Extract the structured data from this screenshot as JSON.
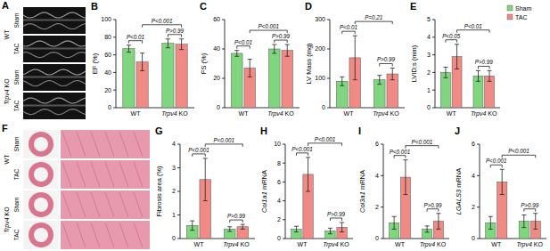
{
  "panel_a": {
    "label": "A",
    "groups": [
      {
        "genotype": "WT",
        "conditions": [
          "Sham",
          "TAC"
        ]
      },
      {
        "genotype": "Trpv4 KO",
        "conditions": [
          "Sham",
          "TAC"
        ]
      }
    ]
  },
  "panel_f": {
    "label": "F",
    "groups": [
      {
        "genotype": "WT",
        "conditions": [
          "Sham",
          "TAC"
        ]
      },
      {
        "genotype": "Trpv4 KO",
        "conditions": [
          "Sham",
          "TAC"
        ]
      }
    ]
  },
  "chart_data": [
    {
      "type": "bar",
      "title": "B",
      "y_label": "EF (%)",
      "categories": [
        "WT",
        "Trpv4 KO"
      ],
      "series": [
        {
          "name": "Sham",
          "color": "#7fd67f",
          "values": [
            67,
            73
          ],
          "errors": [
            4,
            5
          ]
        },
        {
          "name": "TAC",
          "color": "#f08a84",
          "values": [
            52,
            72
          ],
          "errors": [
            10,
            6
          ]
        }
      ],
      "ylim": [
        0,
        100
      ],
      "yticks": [
        0,
        20,
        40,
        60,
        80,
        100
      ],
      "annotations": [
        "P<0.01",
        "P<0.001",
        "P>0.99"
      ]
    },
    {
      "type": "bar",
      "title": "C",
      "y_label": "FS (%)",
      "categories": [
        "WT",
        "Trpv4 KO"
      ],
      "series": [
        {
          "name": "Sham",
          "color": "#7fd67f",
          "values": [
            37,
            40
          ],
          "errors": [
            2,
            3
          ]
        },
        {
          "name": "TAC",
          "color": "#f08a84",
          "values": [
            27,
            39
          ],
          "errors": [
            6,
            4
          ]
        }
      ],
      "ylim": [
        0,
        60
      ],
      "yticks": [
        0,
        20,
        40,
        60
      ],
      "annotations": [
        "P<0.01",
        "P<0.001",
        "P>0.99"
      ]
    },
    {
      "type": "bar",
      "title": "D",
      "y_label": "LV Mass (mg)",
      "categories": [
        "WT",
        "Trpv4 KO"
      ],
      "series": [
        {
          "name": "Sham",
          "color": "#7fd67f",
          "values": [
            90,
            95
          ],
          "errors": [
            15,
            15
          ]
        },
        {
          "name": "TAC",
          "color": "#f08a84",
          "values": [
            170,
            115
          ],
          "errors": [
            75,
            20
          ]
        }
      ],
      "ylim": [
        0,
        300
      ],
      "yticks": [
        0,
        100,
        200,
        300
      ],
      "annotations": [
        "P<0.01",
        "P=0.21",
        "P>0.99"
      ]
    },
    {
      "type": "bar",
      "title": "E",
      "y_label": "LVID;s (mm)",
      "categories": [
        "WT",
        "Trpv4 KO"
      ],
      "series": [
        {
          "name": "Sham",
          "color": "#7fd67f",
          "values": [
            2.0,
            1.8
          ],
          "errors": [
            0.3,
            0.3
          ]
        },
        {
          "name": "TAC",
          "color": "#f08a84",
          "values": [
            2.9,
            1.8
          ],
          "errors": [
            0.7,
            0.3
          ]
        }
      ],
      "ylim": [
        0,
        5
      ],
      "yticks": [
        0,
        1,
        2,
        3,
        4,
        5
      ],
      "annotations": [
        "P<0.05",
        "P<0.01",
        "P>0.99"
      ],
      "legend": "upper right"
    },
    {
      "type": "bar",
      "title": "G",
      "y_label": "Fibrosis area (%)",
      "categories": [
        "WT",
        "Trpv4 KO"
      ],
      "series": [
        {
          "name": "Sham",
          "color": "#7fd67f",
          "values": [
            0.55,
            0.4
          ],
          "errors": [
            0.2,
            0.1
          ]
        },
        {
          "name": "TAC",
          "color": "#f08a84",
          "values": [
            2.5,
            0.5
          ],
          "errors": [
            0.9,
            0.1
          ]
        }
      ],
      "ylim": [
        0,
        4
      ],
      "yticks": [
        0,
        1,
        2,
        3,
        4
      ],
      "annotations": [
        "P<0.001",
        "P<0.001",
        "P>0.99"
      ]
    },
    {
      "type": "bar",
      "title": "H",
      "y_label": "Col1a1 mRNA",
      "categories": [
        "WT",
        "Trpv4 KO"
      ],
      "series": [
        {
          "name": "Sham",
          "color": "#7fd67f",
          "values": [
            1.0,
            0.8
          ],
          "errors": [
            0.3,
            0.3
          ]
        },
        {
          "name": "TAC",
          "color": "#f08a84",
          "values": [
            6.8,
            1.2
          ],
          "errors": [
            1.8,
            0.5
          ]
        }
      ],
      "ylim": [
        0,
        10
      ],
      "yticks": [
        0,
        2,
        4,
        6,
        8,
        10
      ],
      "annotations": [
        "P<0.001",
        "P<0.001",
        "P>0.99"
      ]
    },
    {
      "type": "bar",
      "title": "I",
      "y_label": "Col3a1 mRNA",
      "categories": [
        "WT",
        "Trpv4 KO"
      ],
      "series": [
        {
          "name": "Sham",
          "color": "#7fd67f",
          "values": [
            1.0,
            0.6
          ],
          "errors": [
            0.4,
            0.2
          ]
        },
        {
          "name": "TAC",
          "color": "#f08a84",
          "values": [
            3.9,
            1.1
          ],
          "errors": [
            1.1,
            0.5
          ]
        }
      ],
      "ylim": [
        0,
        6
      ],
      "yticks": [
        0,
        2,
        4,
        6
      ],
      "annotations": [
        "P<0.001",
        "P<0.001",
        "P>0.99"
      ]
    },
    {
      "type": "bar",
      "title": "J",
      "y_label": "LGALS3 mRNA",
      "categories": [
        "WT",
        "Trpv4 KO"
      ],
      "series": [
        {
          "name": "Sham",
          "color": "#7fd67f",
          "values": [
            1.0,
            1.1
          ],
          "errors": [
            0.4,
            0.4
          ]
        },
        {
          "name": "TAC",
          "color": "#f08a84",
          "values": [
            3.6,
            1.1
          ],
          "errors": [
            0.8,
            0.5
          ]
        }
      ],
      "ylim": [
        0,
        6
      ],
      "yticks": [
        0,
        2,
        4,
        6
      ],
      "annotations": [
        "P<0.001",
        "P<0.001",
        "P>0.99"
      ]
    }
  ]
}
